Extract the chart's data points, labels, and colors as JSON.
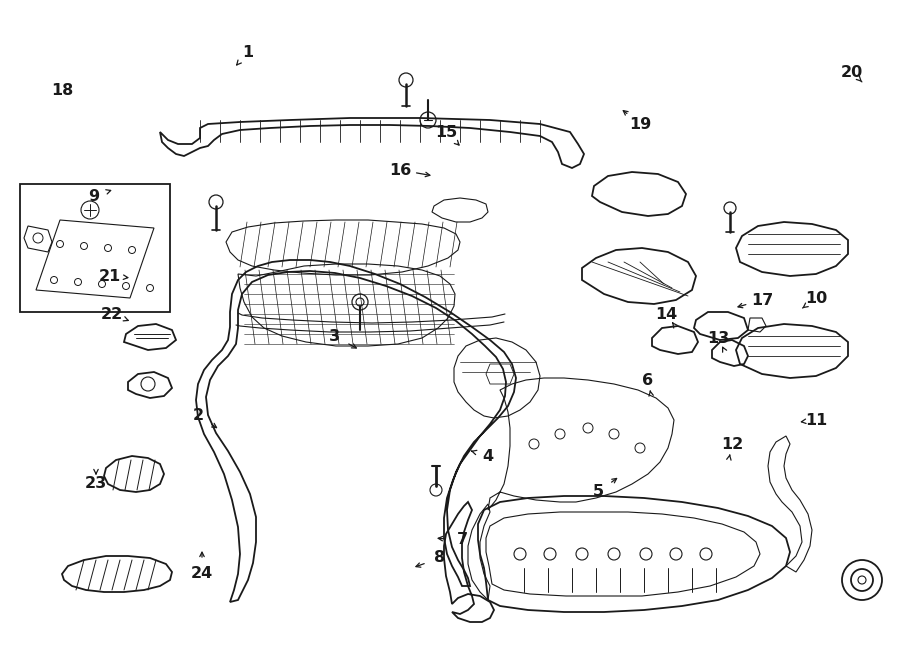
{
  "background_color": "#ffffff",
  "line_color": "#1a1a1a",
  "label_fontsize": 11.5,
  "fig_width": 9.0,
  "fig_height": 6.62,
  "dpi": 100
}
